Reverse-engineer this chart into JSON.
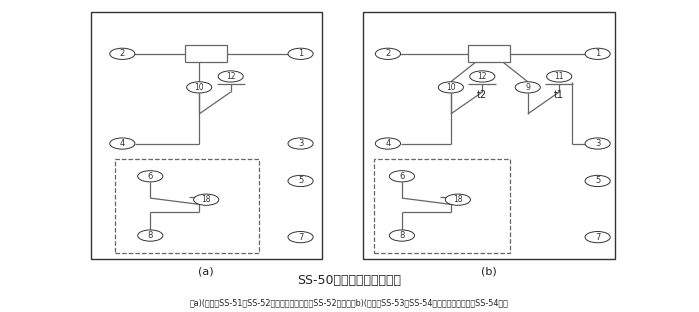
{
  "title": "SS-50系列背后端子接线图",
  "subtitle": "（a)(背视）SS-51、SS-52型，图中虚线部分仅SS-52型有；（b)(背视）SS-53、SS-54型，图中虚线部分仅SS-54型有",
  "label_a": "(a)",
  "label_b": "(b)",
  "bg_color": "#ffffff",
  "line_color": "#666666",
  "border_color": "#333333",
  "text_color": "#222222",
  "fig_width": 6.99,
  "fig_height": 3.12,
  "dpi": 100
}
